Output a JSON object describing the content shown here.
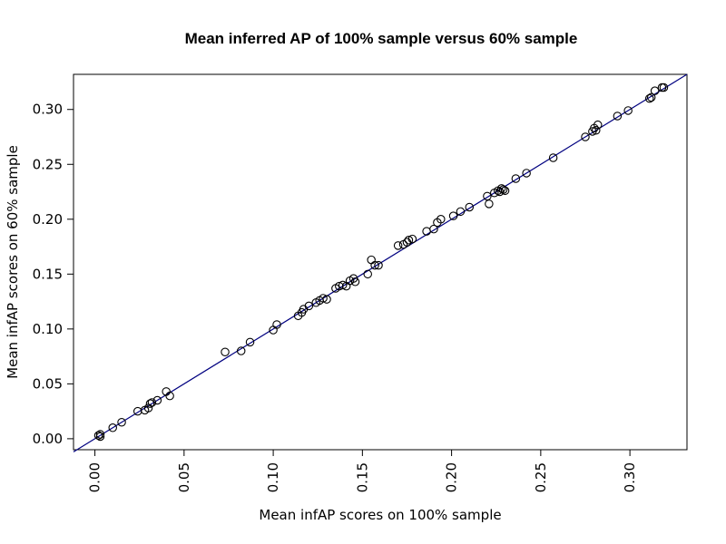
{
  "chart_data": {
    "type": "scatter",
    "title": "Mean inferred AP of 100% sample versus 60% sample",
    "xlabel": "Mean infAP scores on 100% sample",
    "ylabel": "Mean infAP scores on 60% sample",
    "xlim": [
      -0.012,
      0.332
    ],
    "ylim": [
      -0.01,
      0.332
    ],
    "x_ticks": [
      0.0,
      0.05,
      0.1,
      0.15,
      0.2,
      0.25,
      0.3
    ],
    "x_tick_labels": [
      "0.00",
      "0.05",
      "0.10",
      "0.15",
      "0.20",
      "0.25",
      "0.30"
    ],
    "y_ticks": [
      0.0,
      0.05,
      0.1,
      0.15,
      0.2,
      0.25,
      0.3
    ],
    "y_tick_labels": [
      "0.00",
      "0.05",
      "0.10",
      "0.15",
      "0.20",
      "0.25",
      "0.30"
    ],
    "grid": false,
    "reference_line": {
      "intercept": 0,
      "slope": 1,
      "color": "#000080"
    },
    "points": [
      {
        "x": 0.002,
        "y": 0.003
      },
      {
        "x": 0.003,
        "y": 0.004
      },
      {
        "x": 0.003,
        "y": 0.002
      },
      {
        "x": 0.01,
        "y": 0.01
      },
      {
        "x": 0.015,
        "y": 0.015
      },
      {
        "x": 0.024,
        "y": 0.025
      },
      {
        "x": 0.028,
        "y": 0.026
      },
      {
        "x": 0.03,
        "y": 0.028
      },
      {
        "x": 0.031,
        "y": 0.032
      },
      {
        "x": 0.032,
        "y": 0.033
      },
      {
        "x": 0.035,
        "y": 0.035
      },
      {
        "x": 0.04,
        "y": 0.043
      },
      {
        "x": 0.042,
        "y": 0.039
      },
      {
        "x": 0.073,
        "y": 0.079
      },
      {
        "x": 0.082,
        "y": 0.08
      },
      {
        "x": 0.087,
        "y": 0.088
      },
      {
        "x": 0.1,
        "y": 0.099
      },
      {
        "x": 0.102,
        "y": 0.104
      },
      {
        "x": 0.114,
        "y": 0.112
      },
      {
        "x": 0.116,
        "y": 0.115
      },
      {
        "x": 0.117,
        "y": 0.118
      },
      {
        "x": 0.12,
        "y": 0.121
      },
      {
        "x": 0.124,
        "y": 0.124
      },
      {
        "x": 0.126,
        "y": 0.126
      },
      {
        "x": 0.128,
        "y": 0.128
      },
      {
        "x": 0.13,
        "y": 0.127
      },
      {
        "x": 0.135,
        "y": 0.137
      },
      {
        "x": 0.137,
        "y": 0.139
      },
      {
        "x": 0.139,
        "y": 0.14
      },
      {
        "x": 0.141,
        "y": 0.139
      },
      {
        "x": 0.143,
        "y": 0.144
      },
      {
        "x": 0.145,
        "y": 0.146
      },
      {
        "x": 0.146,
        "y": 0.143
      },
      {
        "x": 0.153,
        "y": 0.15
      },
      {
        "x": 0.155,
        "y": 0.163
      },
      {
        "x": 0.157,
        "y": 0.158
      },
      {
        "x": 0.159,
        "y": 0.158
      },
      {
        "x": 0.17,
        "y": 0.176
      },
      {
        "x": 0.173,
        "y": 0.177
      },
      {
        "x": 0.175,
        "y": 0.179
      },
      {
        "x": 0.176,
        "y": 0.181
      },
      {
        "x": 0.178,
        "y": 0.182
      },
      {
        "x": 0.186,
        "y": 0.189
      },
      {
        "x": 0.19,
        "y": 0.191
      },
      {
        "x": 0.192,
        "y": 0.197
      },
      {
        "x": 0.194,
        "y": 0.2
      },
      {
        "x": 0.201,
        "y": 0.203
      },
      {
        "x": 0.205,
        "y": 0.207
      },
      {
        "x": 0.21,
        "y": 0.211
      },
      {
        "x": 0.22,
        "y": 0.221
      },
      {
        "x": 0.221,
        "y": 0.214
      },
      {
        "x": 0.224,
        "y": 0.224
      },
      {
        "x": 0.226,
        "y": 0.226
      },
      {
        "x": 0.227,
        "y": 0.225
      },
      {
        "x": 0.228,
        "y": 0.228
      },
      {
        "x": 0.229,
        "y": 0.227
      },
      {
        "x": 0.23,
        "y": 0.226
      },
      {
        "x": 0.236,
        "y": 0.237
      },
      {
        "x": 0.242,
        "y": 0.242
      },
      {
        "x": 0.257,
        "y": 0.256
      },
      {
        "x": 0.275,
        "y": 0.275
      },
      {
        "x": 0.279,
        "y": 0.28
      },
      {
        "x": 0.28,
        "y": 0.283
      },
      {
        "x": 0.281,
        "y": 0.281
      },
      {
        "x": 0.282,
        "y": 0.286
      },
      {
        "x": 0.293,
        "y": 0.294
      },
      {
        "x": 0.299,
        "y": 0.299
      },
      {
        "x": 0.311,
        "y": 0.31
      },
      {
        "x": 0.312,
        "y": 0.311
      },
      {
        "x": 0.314,
        "y": 0.317
      },
      {
        "x": 0.318,
        "y": 0.32
      },
      {
        "x": 0.319,
        "y": 0.32
      }
    ]
  }
}
